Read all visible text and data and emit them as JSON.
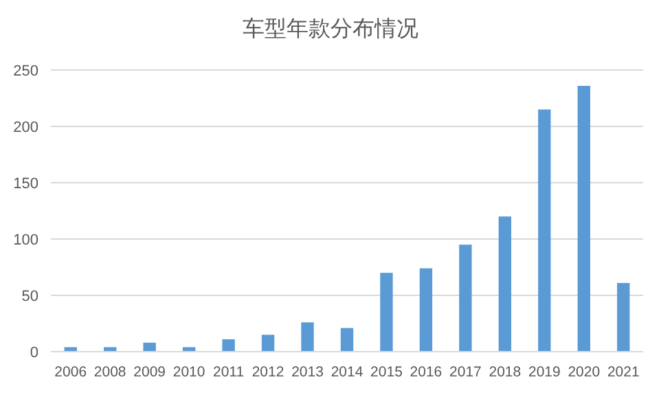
{
  "chart_data": {
    "type": "bar",
    "title": "车型年款分布情况",
    "categories": [
      "2006",
      "2008",
      "2009",
      "2010",
      "2011",
      "2012",
      "2013",
      "2014",
      "2015",
      "2016",
      "2017",
      "2018",
      "2019",
      "2020",
      "2021"
    ],
    "values": [
      4,
      4,
      8,
      4,
      11,
      15,
      26,
      21,
      70,
      74,
      95,
      120,
      215,
      236,
      61
    ],
    "color": "#5b9bd5",
    "ylim": [
      0,
      250
    ],
    "yticks": [
      0,
      50,
      100,
      150,
      200,
      250
    ],
    "grid": "y"
  }
}
